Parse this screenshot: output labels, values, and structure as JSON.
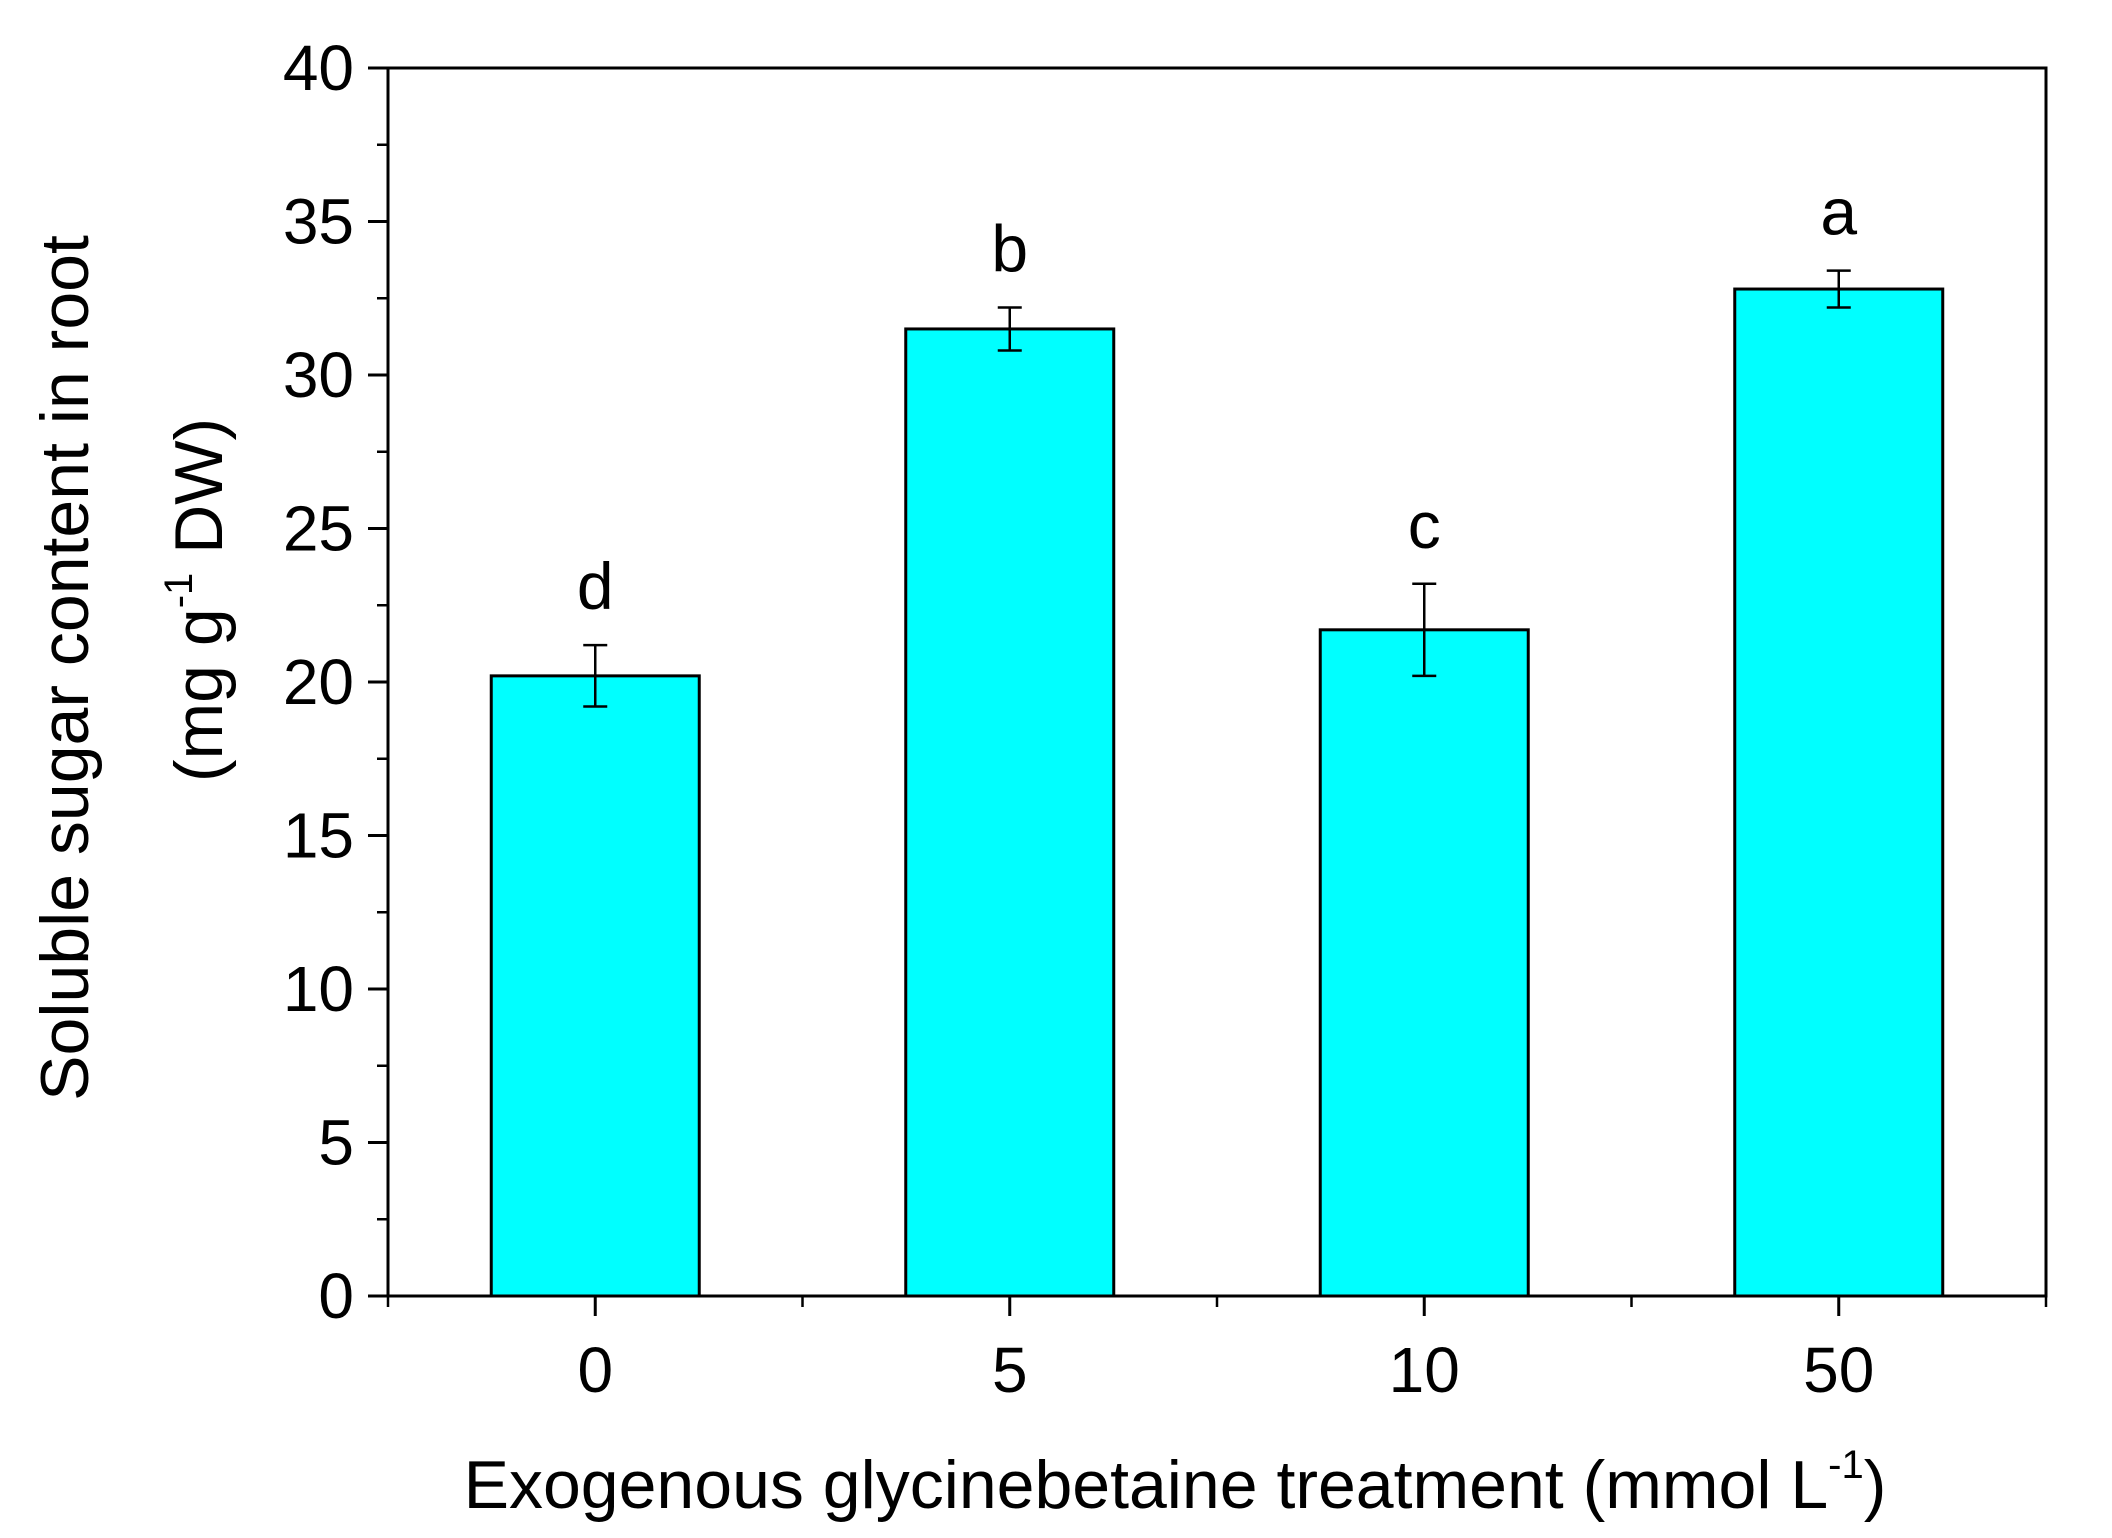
{
  "chart_data": {
    "type": "bar",
    "categories": [
      "0",
      "5",
      "10",
      "50"
    ],
    "values": [
      20.2,
      31.5,
      21.7,
      32.8
    ],
    "errors": [
      1.0,
      0.7,
      1.5,
      0.6
    ],
    "significance_letters": [
      "d",
      "b",
      "c",
      "a"
    ],
    "bar_color": "#00ffff",
    "xlabel": "Exogenous glycinebetaine treatment (mmol L",
    "xlabel_sup": "-1",
    "xlabel_end": ")",
    "ylabel_line1": "Soluble sugar content in root",
    "ylabel_line2": "(mg g",
    "ylabel_sup": "-1",
    "ylabel_line2_end": " DW)",
    "ylim": [
      0,
      40
    ],
    "yticks": [
      "0",
      "5",
      "10",
      "15",
      "20",
      "25",
      "30",
      "35",
      "40"
    ],
    "grid": false
  }
}
